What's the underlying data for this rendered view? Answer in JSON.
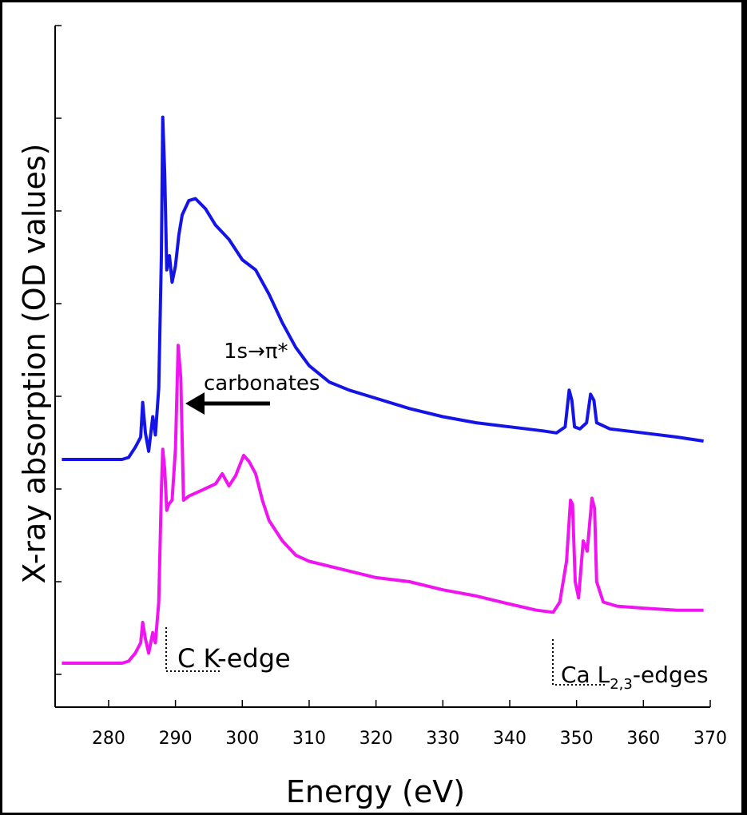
{
  "chart_data": {
    "type": "line",
    "xlabel": "Energy (eV)",
    "ylabel": "X-ray absorption (OD values)",
    "xlim": [
      272,
      370
    ],
    "xticks": [
      280,
      290,
      300,
      310,
      320,
      330,
      340,
      350,
      360,
      370
    ],
    "y_tick_labels_shown": false,
    "grid": false,
    "colors": {
      "blue": "#1414e6",
      "magenta": "#f014f0"
    },
    "series": [
      {
        "color": "blue",
        "points": [
          [
            273,
            10.0
          ],
          [
            282,
            10.0
          ],
          [
            283,
            10.1
          ],
          [
            284,
            10.6
          ],
          [
            284.8,
            11.1
          ],
          [
            285.1,
            12.8
          ],
          [
            285.5,
            11.3
          ],
          [
            286,
            10.4
          ],
          [
            286.6,
            12.1
          ],
          [
            287,
            11.2
          ],
          [
            287.5,
            13.5
          ],
          [
            287.9,
            20.0
          ],
          [
            288.1,
            26.8
          ],
          [
            288.4,
            24.0
          ],
          [
            288.7,
            19.3
          ],
          [
            289.1,
            20.0
          ],
          [
            289.5,
            18.7
          ],
          [
            290,
            19.5
          ],
          [
            290.5,
            21.0
          ],
          [
            291,
            22.0
          ],
          [
            292,
            22.7
          ],
          [
            293,
            22.8
          ],
          [
            294.5,
            22.3
          ],
          [
            296,
            21.5
          ],
          [
            298,
            20.8
          ],
          [
            300,
            19.8
          ],
          [
            302,
            19.3
          ],
          [
            304,
            18.1
          ],
          [
            306,
            16.7
          ],
          [
            308,
            15.5
          ],
          [
            310,
            14.6
          ],
          [
            313,
            13.8
          ],
          [
            316,
            13.4
          ],
          [
            320,
            13.0
          ],
          [
            325,
            12.5
          ],
          [
            330,
            12.1
          ],
          [
            335,
            11.8
          ],
          [
            340,
            11.6
          ],
          [
            345,
            11.4
          ],
          [
            347,
            11.3
          ],
          [
            348.3,
            11.6
          ],
          [
            348.9,
            13.4
          ],
          [
            349.3,
            12.9
          ],
          [
            349.7,
            11.6
          ],
          [
            350.5,
            11.5
          ],
          [
            351.5,
            11.8
          ],
          [
            352.1,
            13.2
          ],
          [
            352.6,
            12.9
          ],
          [
            353,
            11.8
          ],
          [
            355,
            11.5
          ],
          [
            360,
            11.3
          ],
          [
            365,
            11.1
          ],
          [
            369,
            10.9
          ]
        ]
      },
      {
        "color": "magenta",
        "points": [
          [
            273,
            0.0
          ],
          [
            282,
            0.0
          ],
          [
            283,
            0.1
          ],
          [
            284,
            0.5
          ],
          [
            284.8,
            1.0
          ],
          [
            285.1,
            2.0
          ],
          [
            285.5,
            1.2
          ],
          [
            286,
            0.5
          ],
          [
            286.6,
            1.5
          ],
          [
            287,
            1.0
          ],
          [
            287.5,
            3.0
          ],
          [
            287.9,
            8.5
          ],
          [
            288.1,
            10.5
          ],
          [
            288.4,
            9.5
          ],
          [
            288.7,
            7.5
          ],
          [
            289,
            7.8
          ],
          [
            289.5,
            8.0
          ],
          [
            290,
            10.5
          ],
          [
            290.4,
            15.6
          ],
          [
            290.8,
            14.0
          ],
          [
            291.2,
            8.0
          ],
          [
            292,
            8.2
          ],
          [
            294,
            8.5
          ],
          [
            296,
            8.8
          ],
          [
            297,
            9.3
          ],
          [
            298,
            8.7
          ],
          [
            299,
            9.2
          ],
          [
            300.2,
            10.2
          ],
          [
            301,
            9.9
          ],
          [
            302,
            9.3
          ],
          [
            303,
            8.0
          ],
          [
            304,
            7.0
          ],
          [
            306,
            6.0
          ],
          [
            308,
            5.3
          ],
          [
            310,
            5.0
          ],
          [
            315,
            4.6
          ],
          [
            320,
            4.2
          ],
          [
            325,
            4.0
          ],
          [
            330,
            3.6
          ],
          [
            335,
            3.3
          ],
          [
            340,
            2.9
          ],
          [
            344,
            2.6
          ],
          [
            346.5,
            2.5
          ],
          [
            347.5,
            3.0
          ],
          [
            348.5,
            5.0
          ],
          [
            349.1,
            8.0
          ],
          [
            349.4,
            7.8
          ],
          [
            349.8,
            4.0
          ],
          [
            350.3,
            3.2
          ],
          [
            351,
            6.0
          ],
          [
            351.6,
            5.5
          ],
          [
            352.3,
            8.1
          ],
          [
            352.7,
            7.6
          ],
          [
            353,
            4.0
          ],
          [
            354,
            3.0
          ],
          [
            356,
            2.8
          ],
          [
            360,
            2.7
          ],
          [
            365,
            2.6
          ],
          [
            369,
            2.6
          ]
        ]
      }
    ],
    "annotations": {
      "pi_star": {
        "line1": "1s→π*",
        "line2": "carbonates"
      },
      "c_edge": {
        "label": "C K-edge"
      },
      "ca_edge": {
        "label_main": "Ca L",
        "label_sub": "2,3",
        "label_tail": "-edges"
      }
    }
  }
}
